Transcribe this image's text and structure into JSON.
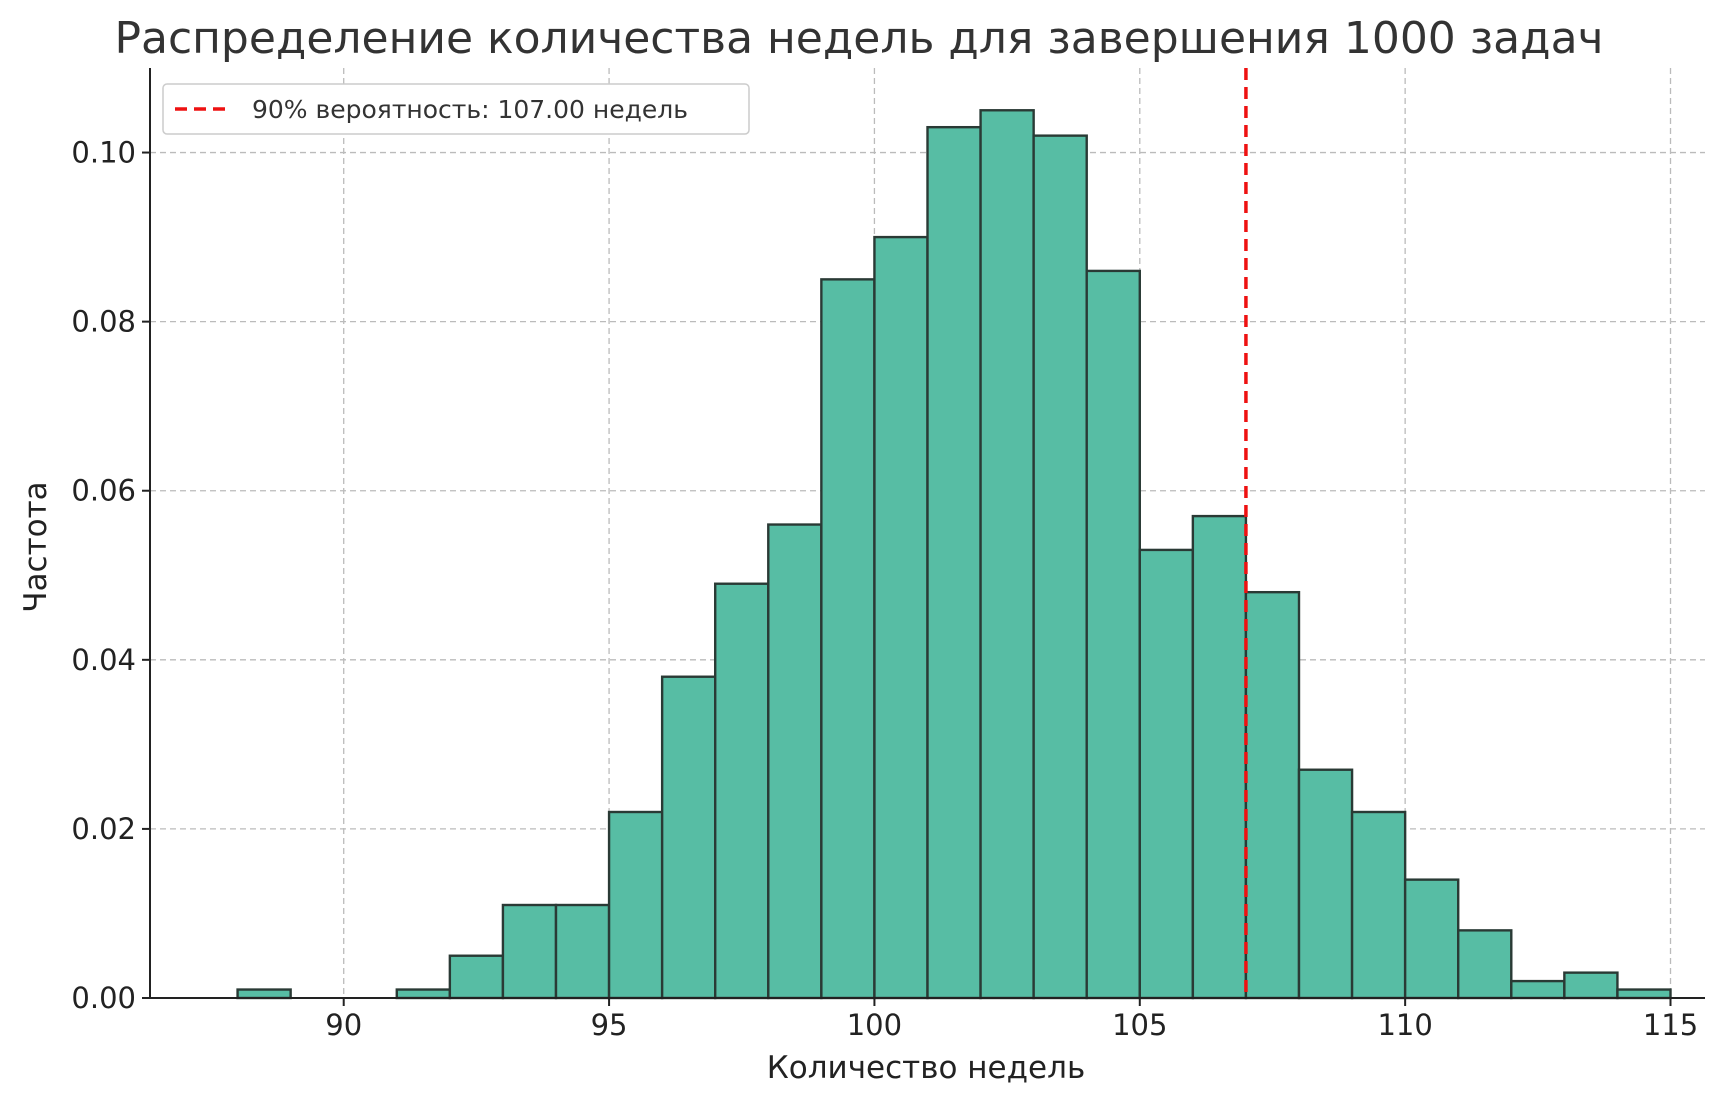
{
  "chart_data": {
    "type": "bar",
    "title": "Распределение количества недель для завершения 1000 задач",
    "xlabel": "Количество недель",
    "ylabel": "Частота",
    "xlim": [
      86.35,
      115.65
    ],
    "ylim": [
      0,
      0.11
    ],
    "xticks": [
      90,
      95,
      100,
      105,
      110,
      115
    ],
    "yticks": [
      0.0,
      0.02,
      0.04,
      0.06,
      0.08,
      0.1
    ],
    "bin_width": 1,
    "bins": [
      {
        "x": 88,
        "value": 0.001
      },
      {
        "x": 89,
        "value": 0.0
      },
      {
        "x": 90,
        "value": 0.0
      },
      {
        "x": 91,
        "value": 0.001
      },
      {
        "x": 92,
        "value": 0.005
      },
      {
        "x": 93,
        "value": 0.011
      },
      {
        "x": 94,
        "value": 0.011
      },
      {
        "x": 95,
        "value": 0.022
      },
      {
        "x": 96,
        "value": 0.038
      },
      {
        "x": 97,
        "value": 0.049
      },
      {
        "x": 98,
        "value": 0.056
      },
      {
        "x": 99,
        "value": 0.085
      },
      {
        "x": 100,
        "value": 0.09
      },
      {
        "x": 101,
        "value": 0.103
      },
      {
        "x": 102,
        "value": 0.105
      },
      {
        "x": 103,
        "value": 0.102
      },
      {
        "x": 104,
        "value": 0.086
      },
      {
        "x": 105,
        "value": 0.053
      },
      {
        "x": 106,
        "value": 0.057
      },
      {
        "x": 107,
        "value": 0.048
      },
      {
        "x": 108,
        "value": 0.027
      },
      {
        "x": 109,
        "value": 0.022
      },
      {
        "x": 110,
        "value": 0.014
      },
      {
        "x": 111,
        "value": 0.008
      },
      {
        "x": 112,
        "value": 0.002
      },
      {
        "x": 113,
        "value": 0.003
      },
      {
        "x": 114,
        "value": 0.001
      }
    ],
    "reference_line": {
      "x": 107.0,
      "style": "dashed",
      "color": "#ee1111"
    },
    "legend": {
      "position": "top-left",
      "entries": [
        "90% вероятность: 107.00 недель"
      ]
    },
    "grid": true,
    "colors": {
      "bar_fill": "#57bda4",
      "bar_edge": "#2a3a35",
      "line": "#ee1111"
    }
  }
}
